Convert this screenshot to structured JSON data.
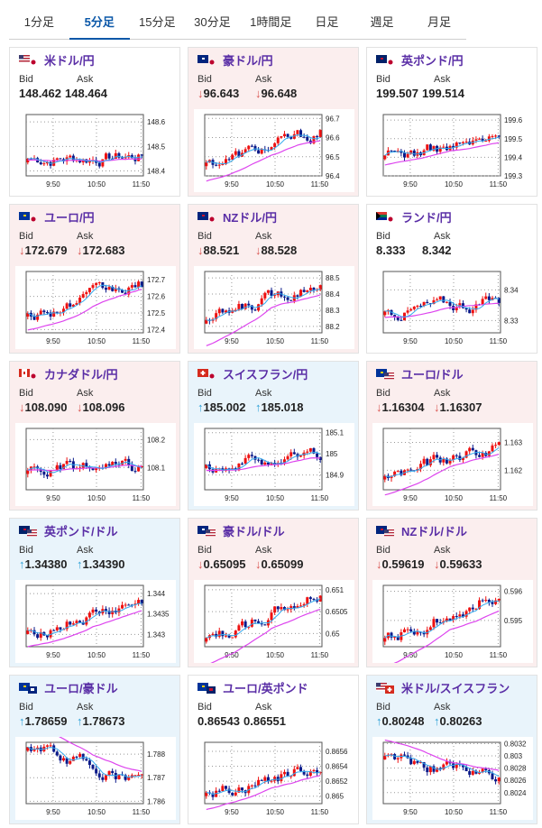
{
  "tabs": [
    {
      "label": "1分足",
      "active": false
    },
    {
      "label": "5分足",
      "active": true
    },
    {
      "label": "15分足",
      "active": false
    },
    {
      "label": "30分足",
      "active": false
    },
    {
      "label": "1時間足",
      "active": false
    },
    {
      "label": "日足",
      "active": false
    },
    {
      "label": "週足",
      "active": false
    },
    {
      "label": "月足",
      "active": false
    }
  ],
  "labels": {
    "bid": "Bid",
    "ask": "Ask"
  },
  "colors": {
    "title": "#5a2ea6",
    "down_arrow": "#d9534f",
    "up_arrow": "#2a9fd6",
    "bull": "#ee1111",
    "bear": "#0a1a8a",
    "ma_short": "#33aaee",
    "ma_long": "#dd44ee",
    "card_down_bg": "#fbeeee",
    "card_up_bg": "#e9f4fb"
  },
  "x_ticks": [
    "9:50",
    "10:50",
    "11:50"
  ],
  "pairs": [
    {
      "name": "米ドル/円",
      "flag": "us-jp-flag-icon",
      "trend": "none",
      "bid": "148.462",
      "ask": "148.464",
      "yticks": [
        "148.6",
        "148.5",
        "148.4"
      ],
      "ymin": 148.38,
      "ymax": 148.63,
      "start": 148.45,
      "end": 148.46
    },
    {
      "name": "豪ドル/円",
      "flag": "au-jp-flag-icon",
      "trend": "down",
      "bid": "96.643",
      "ask": "96.648",
      "yticks": [
        "96.7",
        "96.6",
        "96.5",
        "96.4"
      ],
      "ymin": 96.4,
      "ymax": 96.72,
      "start": 96.47,
      "end": 96.64
    },
    {
      "name": "英ポンド/円",
      "flag": "gb-jp-flag-icon",
      "trend": "none",
      "bid": "199.507",
      "ask": "199.514",
      "yticks": [
        "199.6",
        "199.5",
        "199.4",
        "199.3"
      ],
      "ymin": 199.3,
      "ymax": 199.63,
      "start": 199.41,
      "end": 199.5
    },
    {
      "name": "ユーロ/円",
      "flag": "eu-jp-flag-icon",
      "trend": "down",
      "bid": "172.679",
      "ask": "172.683",
      "yticks": [
        "172.7",
        "172.6",
        "172.5",
        "172.4"
      ],
      "ymin": 172.38,
      "ymax": 172.75,
      "start": 172.5,
      "end": 172.68
    },
    {
      "name": "NZドル/円",
      "flag": "nz-jp-flag-icon",
      "trend": "down",
      "bid": "88.521",
      "ask": "88.528",
      "yticks": [
        "88.5",
        "88.4",
        "88.3",
        "88.2"
      ],
      "ymin": 88.16,
      "ymax": 88.54,
      "start": 88.24,
      "end": 88.52
    },
    {
      "name": "ランド/円",
      "flag": "za-jp-flag-icon",
      "trend": "none",
      "bid": "8.333",
      "ask": "8.342",
      "yticks": [
        "8.34",
        "8.33"
      ],
      "ymin": 8.326,
      "ymax": 8.346,
      "start": 8.333,
      "end": 8.3365
    },
    {
      "name": "カナダドル/円",
      "flag": "ca-jp-flag-icon",
      "trend": "down",
      "bid": "108.090",
      "ask": "108.096",
      "yticks": [
        "108.2",
        "108.1"
      ],
      "ymin": 108.02,
      "ymax": 108.24,
      "start": 108.09,
      "end": 108.09
    },
    {
      "name": "スイスフラン/円",
      "flag": "ch-jp-flag-icon",
      "trend": "up",
      "bid": "185.002",
      "ask": "185.018",
      "yticks": [
        "185.1",
        "185",
        "184.9"
      ],
      "ymin": 184.83,
      "ymax": 185.12,
      "start": 184.95,
      "end": 185.0
    },
    {
      "name": "ユーロ/ドル",
      "flag": "eu-us-flag-icon",
      "trend": "down",
      "bid": "1.16304",
      "ask": "1.16307",
      "yticks": [
        "1.163",
        "1.162"
      ],
      "ymin": 1.1613,
      "ymax": 1.1635,
      "start": 1.1618,
      "end": 1.163
    },
    {
      "name": "英ポンド/ドル",
      "flag": "gb-us-flag-icon",
      "trend": "up",
      "bid": "1.34380",
      "ask": "1.34390",
      "yticks": [
        "1.344",
        "1.3435",
        "1.343"
      ],
      "ymin": 1.3427,
      "ymax": 1.3442,
      "start": 1.3431,
      "end": 1.3438
    },
    {
      "name": "豪ドル/ドル",
      "flag": "au-us-flag-icon",
      "trend": "down",
      "bid": "0.65095",
      "ask": "0.65099",
      "yticks": [
        "0.651",
        "0.6505",
        "0.65"
      ],
      "ymin": 0.6497,
      "ymax": 0.6511,
      "start": 0.6499,
      "end": 0.651
    },
    {
      "name": "NZドル/ドル",
      "flag": "nz-us-flag-icon",
      "trend": "down",
      "bid": "0.59619",
      "ask": "0.59633",
      "yticks": [
        "0.596",
        "0.595"
      ],
      "ymin": 0.5941,
      "ymax": 0.5962,
      "start": 0.5944,
      "end": 0.5962
    },
    {
      "name": "ユーロ/豪ドル",
      "flag": "eu-au-flag-icon",
      "trend": "up",
      "bid": "1.78659",
      "ask": "1.78673",
      "yticks": [
        "1.788",
        "1.787",
        "1.786"
      ],
      "ymin": 1.7859,
      "ymax": 1.7885,
      "start": 1.7883,
      "end": 1.7866
    },
    {
      "name": "ユーロ/英ポンド",
      "flag": "eu-gb-flag-icon",
      "trend": "none",
      "bid": "0.86543",
      "ask": "0.86551",
      "yticks": [
        "0.8656",
        "0.8654",
        "0.8652",
        "0.865"
      ],
      "ymin": 0.8649,
      "ymax": 0.86572,
      "start": 0.86505,
      "end": 0.86545
    },
    {
      "name": "米ドル/スイスフラン",
      "flag": "us-ch-flag-icon",
      "trend": "up",
      "bid": "0.80248",
      "ask": "0.80263",
      "yticks": [
        "0.8032",
        "0.803",
        "0.8028",
        "0.8026",
        "0.8024"
      ],
      "ymin": 0.80222,
      "ymax": 0.80322,
      "start": 0.803,
      "end": 0.80255
    }
  ]
}
